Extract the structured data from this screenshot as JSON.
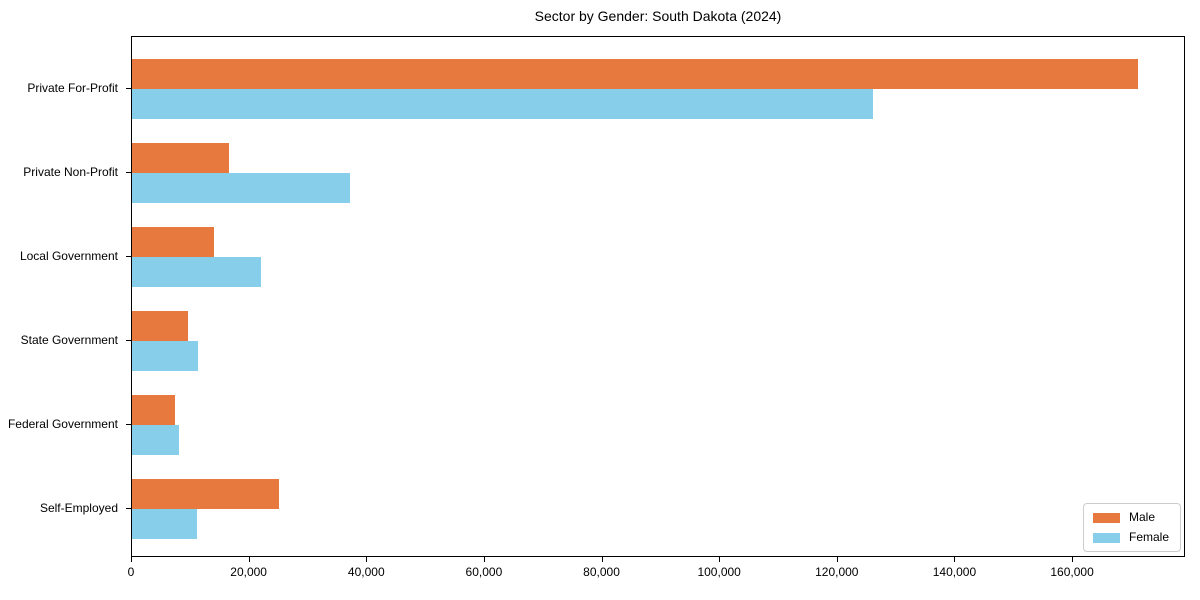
{
  "title": "Sector by Gender: South Dakota (2024)",
  "colors": {
    "male": "#e8793e",
    "female": "#87ceeb",
    "axis": "#000000",
    "background": "#ffffff",
    "legend_border": "#cccccc"
  },
  "legend": {
    "position": "lower right",
    "items": [
      {
        "label": "Male",
        "color": "#e8793e"
      },
      {
        "label": "Female",
        "color": "#87ceeb"
      }
    ]
  },
  "chart_data": {
    "type": "bar",
    "orientation": "horizontal",
    "title": "Sector by Gender: South Dakota (2024)",
    "categories": [
      "Private For-Profit",
      "Private Non-Profit",
      "Local Government",
      "State Government",
      "Federal Government",
      "Self-Employed"
    ],
    "series": [
      {
        "name": "Male",
        "color": "#e8793e",
        "values": [
          171000,
          16500,
          14000,
          9500,
          7300,
          25000
        ]
      },
      {
        "name": "Female",
        "color": "#87ceeb",
        "values": [
          126000,
          37000,
          22000,
          11200,
          8000,
          11000
        ]
      }
    ],
    "xlabel": "",
    "ylabel": "",
    "xlim": [
      0,
      179200
    ],
    "x_ticks": [
      0,
      20000,
      40000,
      60000,
      80000,
      100000,
      120000,
      140000,
      160000
    ],
    "x_tick_labels": [
      "0",
      "20,000",
      "40,000",
      "60,000",
      "80,000",
      "100,000",
      "120,000",
      "140,000",
      "160,000"
    ],
    "grid": false,
    "legend_position": "lower right"
  }
}
